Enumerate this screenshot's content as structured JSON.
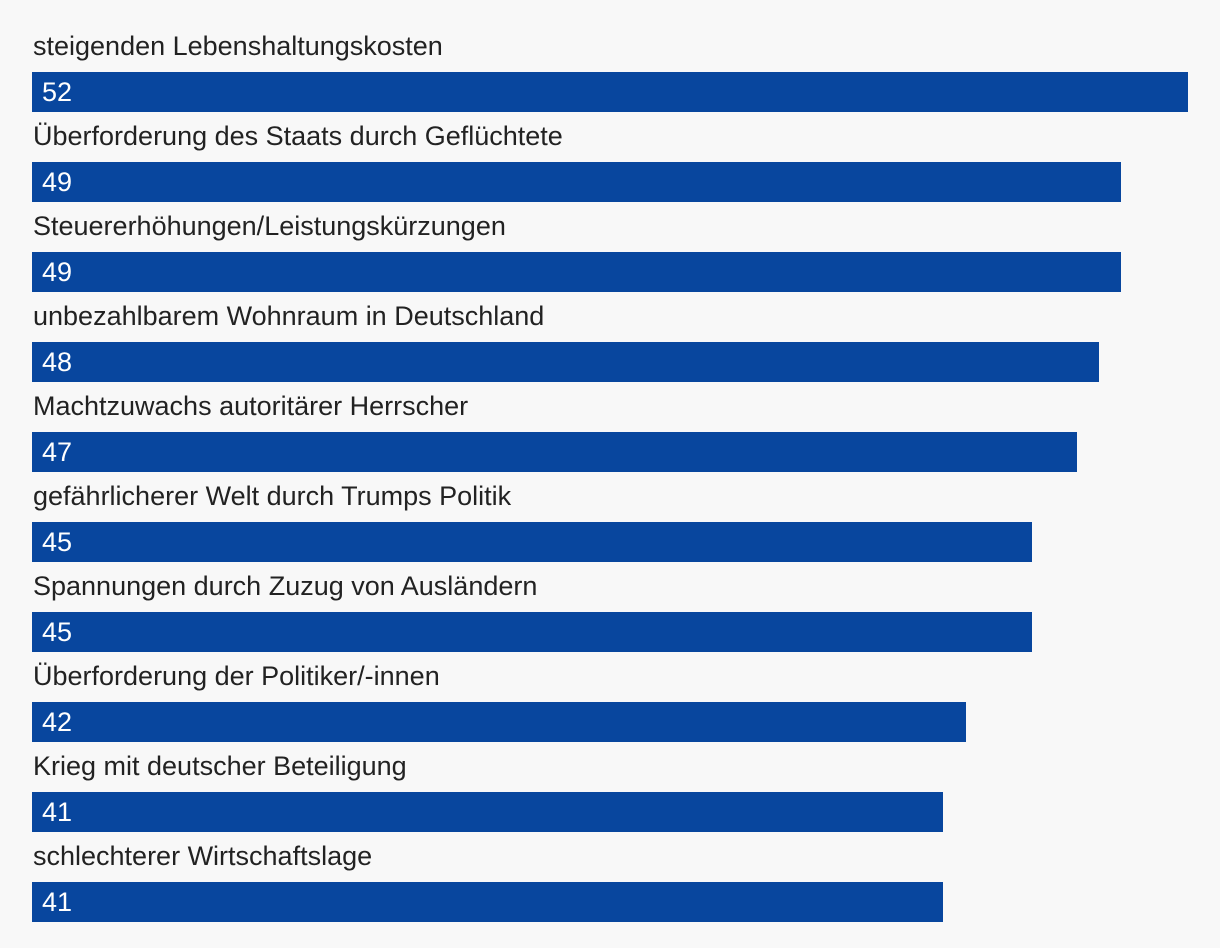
{
  "chart_data": {
    "type": "bar",
    "orientation": "horizontal",
    "categories": [
      "steigenden Lebenshaltungskosten",
      "Überforderung des Staats durch Geflüchtete",
      "Steuererhöhungen/Leistungskürzungen",
      "unbezahlbarem Wohnraum in Deutschland",
      "Machtzuwachs autoritärer Herrscher",
      "gefährlicherer Welt durch Trumps Politik",
      "Spannungen durch Zuzug von Ausländern",
      "Überforderung der Politiker/-innen",
      "Krieg mit deutscher Beteiligung",
      "schlechterer Wirtschaftslage"
    ],
    "values": [
      52,
      49,
      49,
      48,
      47,
      45,
      45,
      42,
      41,
      41
    ],
    "title": "",
    "xlabel": "",
    "ylabel": "",
    "xlim": [
      0,
      52
    ],
    "grid": false,
    "legend": "none",
    "bar_color": "#08469e",
    "label_color": "#222222",
    "value_color": "#ffffff",
    "background": "#f8f8f8"
  }
}
